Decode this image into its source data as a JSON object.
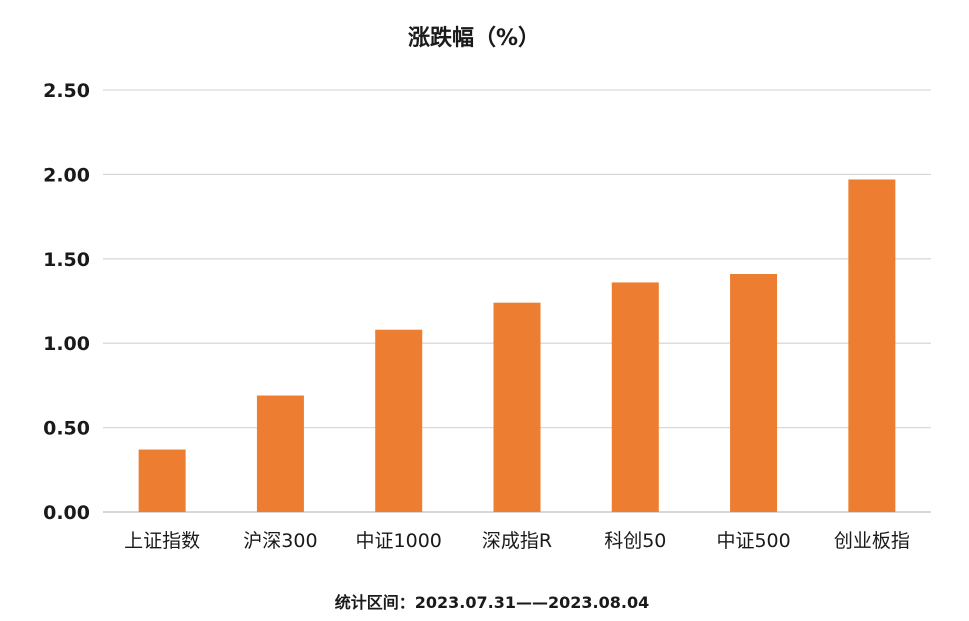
{
  "chart_data": {
    "type": "bar",
    "title": "涨跌幅（%）",
    "categories": [
      "上证指数",
      "沪深300",
      "中证1000",
      "深成指R",
      "科创50",
      "中证500",
      "创业板指"
    ],
    "values": [
      0.37,
      0.69,
      1.08,
      1.24,
      1.36,
      1.41,
      1.97
    ],
    "yticks": [
      "0.00",
      "0.50",
      "1.00",
      "1.50",
      "2.00",
      "2.50"
    ],
    "ylim": [
      0,
      2.5
    ],
    "grid": true,
    "legend": "none",
    "bar_color": "#ED7D31",
    "footnote": "统计区间：2023.07.31——2023.08.04"
  }
}
